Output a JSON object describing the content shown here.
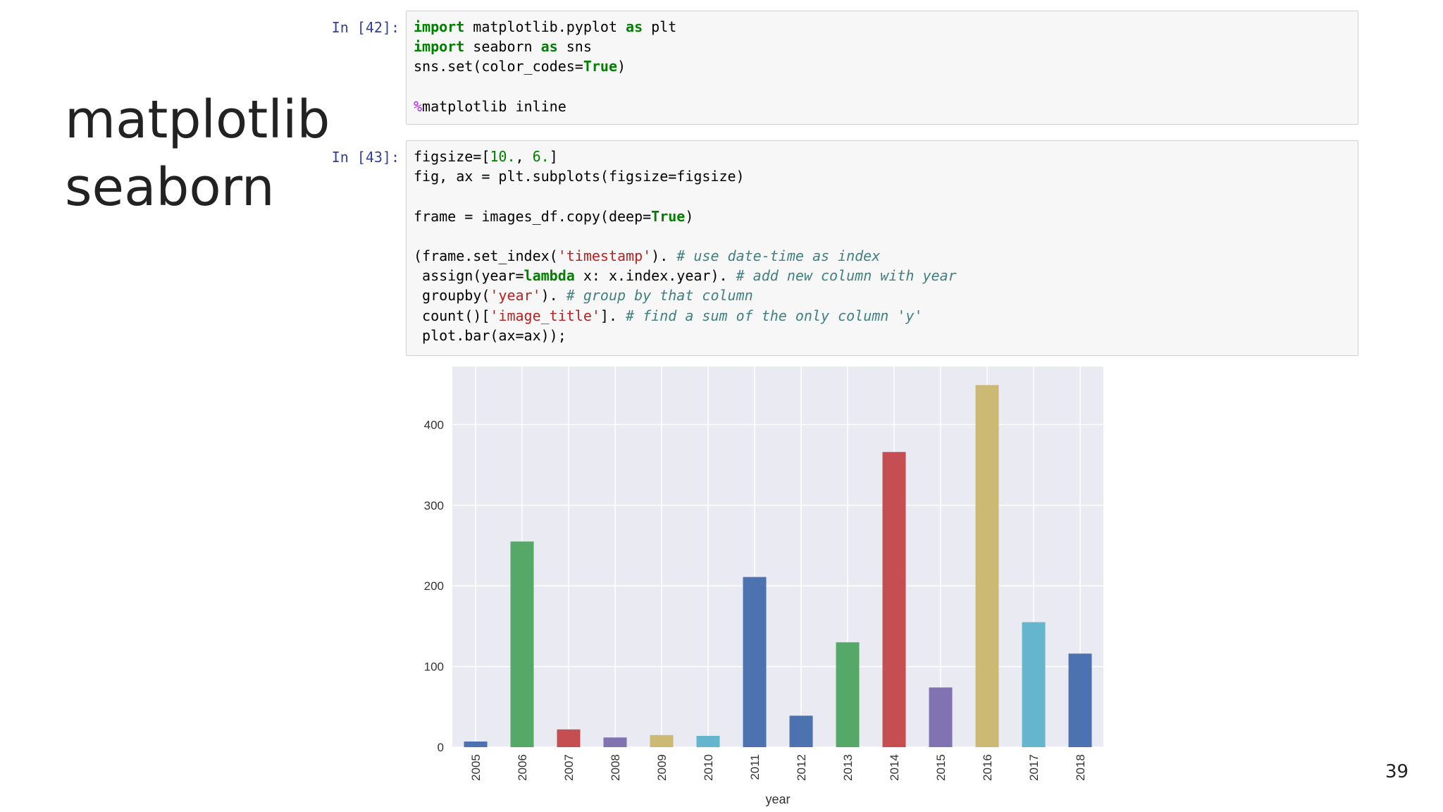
{
  "slide": {
    "title_line1": "matplotlib",
    "title_line2": "seaborn",
    "page_number": "39"
  },
  "cells": [
    {
      "prompt": "In [42]:",
      "lines": [
        [
          [
            "kw",
            "import"
          ],
          [
            "t",
            " matplotlib.pyplot "
          ],
          [
            "kw",
            "as"
          ],
          [
            "t",
            " plt"
          ]
        ],
        [
          [
            "kw",
            "import"
          ],
          [
            "t",
            " seaborn "
          ],
          [
            "kw",
            "as"
          ],
          [
            "t",
            " sns"
          ]
        ],
        [
          [
            "t",
            "sns.set(color_codes="
          ],
          [
            "kw",
            "True"
          ],
          [
            "t",
            ")"
          ]
        ],
        [],
        [
          [
            "mag",
            "%"
          ],
          [
            "t",
            "matplotlib inline"
          ]
        ]
      ]
    },
    {
      "prompt": "In [43]:",
      "lines": [
        [
          [
            "t",
            "figsize=["
          ],
          [
            "num",
            "10."
          ],
          [
            "t",
            ", "
          ],
          [
            "num",
            "6."
          ],
          [
            "t",
            "]"
          ]
        ],
        [
          [
            "t",
            "fig, ax = plt.subplots(figsize=figsize)"
          ]
        ],
        [],
        [
          [
            "t",
            "frame = images_df.copy(deep="
          ],
          [
            "kw",
            "True"
          ],
          [
            "t",
            ")"
          ]
        ],
        [],
        [
          [
            "t",
            "(frame.set_index("
          ],
          [
            "str",
            "'timestamp'"
          ],
          [
            "t",
            "). "
          ],
          [
            "com",
            "# use date-time as index"
          ]
        ],
        [
          [
            "t",
            " assign(year="
          ],
          [
            "kw",
            "lambda"
          ],
          [
            "t",
            " x: x.index.year). "
          ],
          [
            "com",
            "# add new column with year"
          ]
        ],
        [
          [
            "t",
            " groupby("
          ],
          [
            "str",
            "'year'"
          ],
          [
            "t",
            "). "
          ],
          [
            "com",
            "# group by that column"
          ]
        ],
        [
          [
            "t",
            " count()["
          ],
          [
            "str",
            "'image_title'"
          ],
          [
            "t",
            "]. "
          ],
          [
            "com",
            "# find a sum of the only column 'y'"
          ]
        ],
        [
          [
            "t",
            " plot.bar(ax=ax));"
          ]
        ]
      ]
    }
  ],
  "chart_data": {
    "type": "bar",
    "title": "",
    "xlabel": "year",
    "ylabel": "",
    "categories": [
      "2005",
      "2006",
      "2007",
      "2008",
      "2009",
      "2010",
      "2011",
      "2012",
      "2013",
      "2014",
      "2015",
      "2016",
      "2017",
      "2018"
    ],
    "values": [
      7,
      255,
      22,
      12,
      15,
      14,
      211,
      39,
      130,
      366,
      74,
      449,
      155,
      116
    ],
    "colors": [
      "#4c72b0",
      "#55a868",
      "#c44e52",
      "#8172b2",
      "#ccb974",
      "#64b5cd",
      "#4c72b0",
      "#4c72b0",
      "#55a868",
      "#c44e52",
      "#8172b2",
      "#ccb974",
      "#64b5cd",
      "#4c72b0"
    ],
    "ylim": [
      0,
      472
    ],
    "yticks": [
      0,
      100,
      200,
      300,
      400
    ],
    "background": "#eaeaf2",
    "grid": true,
    "legend": "none"
  }
}
